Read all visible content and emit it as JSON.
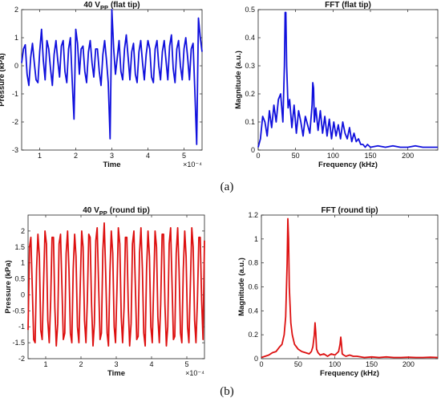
{
  "panel_labels": [
    "(a)",
    "(b)"
  ],
  "chart_data": [
    {
      "type": "line",
      "title": "40 V_PP (flat tip)",
      "title_main": "40 V",
      "title_sub": "PP",
      "title_rest": "(flat tip)",
      "xlabel": "Time",
      "ylabel": "Pressure (kPa)",
      "x_exponent_label": "×10⁻⁴",
      "xlim": [
        0.5,
        5.5
      ],
      "ylim": [
        -3,
        2
      ],
      "xticks": [
        "1",
        "2",
        "3",
        "4",
        "5"
      ],
      "yticks": [
        "-3",
        "-2",
        "-1",
        "0",
        "1",
        "2"
      ],
      "color": "#1010dd",
      "series": [
        {
          "x": [
            0.5,
            0.55,
            0.6,
            0.65,
            0.7,
            0.75,
            0.8,
            0.85,
            0.9,
            0.95,
            1.0,
            1.05,
            1.1,
            1.15,
            1.2,
            1.25,
            1.3,
            1.35,
            1.4,
            1.45,
            1.5,
            1.55,
            1.6,
            1.65,
            1.7,
            1.75,
            1.8,
            1.85,
            1.9,
            1.95,
            2.0,
            2.05,
            2.1,
            2.15,
            2.2,
            2.25,
            2.3,
            2.35,
            2.4,
            2.45,
            2.5,
            2.55,
            2.6,
            2.65,
            2.7,
            2.75,
            2.8,
            2.85,
            2.9,
            2.95,
            3.0,
            3.05,
            3.1,
            3.15,
            3.2,
            3.25,
            3.3,
            3.35,
            3.4,
            3.45,
            3.5,
            3.55,
            3.6,
            3.65,
            3.7,
            3.75,
            3.8,
            3.85,
            3.9,
            3.95,
            4.0,
            4.05,
            4.1,
            4.15,
            4.2,
            4.25,
            4.3,
            4.35,
            4.4,
            4.45,
            4.5,
            4.55,
            4.6,
            4.65,
            4.7,
            4.75,
            4.8,
            4.85,
            4.9,
            4.95,
            5.0,
            5.05,
            5.1,
            5.15,
            5.2,
            5.25,
            5.3,
            5.35,
            5.4,
            5.45,
            5.5
          ],
          "y": [
            0.1,
            0.6,
            0.75,
            -0.3,
            -0.7,
            0.3,
            0.8,
            0.1,
            -0.5,
            -0.6,
            0.5,
            1.3,
            0.2,
            -0.5,
            0.9,
            0.6,
            -0.1,
            -0.7,
            0.4,
            0.9,
            0.2,
            -0.4,
            0.7,
            0.9,
            -0.2,
            -0.6,
            0.6,
            1.0,
            -0.5,
            -1.9,
            1.3,
            0.8,
            -0.3,
            0.6,
            0.7,
            -0.2,
            -0.6,
            0.5,
            0.9,
            0.1,
            -0.4,
            0.6,
            0.6,
            -0.2,
            -0.7,
            0.4,
            0.9,
            0.2,
            -0.6,
            -2.6,
            2.2,
            0.6,
            -0.3,
            0.3,
            0.9,
            -0.2,
            -0.5,
            0.6,
            1.1,
            0.3,
            -0.5,
            0.5,
            0.8,
            -0.3,
            -0.6,
            0.5,
            0.9,
            0.1,
            -0.5,
            0.4,
            0.9,
            0.6,
            -0.4,
            -0.6,
            0.6,
            0.9,
            0.0,
            -0.5,
            0.5,
            0.9,
            0.2,
            -0.5,
            0.7,
            1.1,
            -0.1,
            -0.6,
            0.6,
            0.9,
            0.0,
            -0.5,
            0.6,
            1.0,
            0.3,
            -0.5,
            0.6,
            0.8,
            -0.9,
            -2.8,
            1.7,
            1.0,
            0.5
          ]
        }
      ]
    },
    {
      "type": "line",
      "title": "FFT (flat tip)",
      "xlabel": "Frequency (kHz)",
      "ylabel": "Magnitude (a.u.)",
      "xlim": [
        0,
        240
      ],
      "ylim": [
        0,
        0.5
      ],
      "xticks": [
        "0",
        "50",
        "100",
        "150",
        "200"
      ],
      "yticks": [
        "0",
        "0.1",
        "0.2",
        "0.3",
        "0.4",
        "0.5"
      ],
      "color": "#1010dd",
      "series": [
        {
          "x": [
            0,
            3,
            6,
            9,
            12,
            15,
            18,
            21,
            24,
            27,
            30,
            33,
            35,
            36,
            37,
            38,
            40,
            42,
            45,
            48,
            51,
            54,
            57,
            60,
            63,
            66,
            69,
            72,
            73,
            74,
            75,
            77,
            80,
            83,
            86,
            89,
            92,
            95,
            98,
            101,
            104,
            107,
            110,
            113,
            116,
            119,
            122,
            125,
            128,
            131,
            134,
            137,
            140,
            143,
            146,
            150,
            160,
            170,
            180,
            190,
            200,
            210,
            220,
            230,
            240
          ],
          "y": [
            0.01,
            0.04,
            0.12,
            0.1,
            0.05,
            0.14,
            0.08,
            0.16,
            0.1,
            0.18,
            0.2,
            0.1,
            0.3,
            0.49,
            0.49,
            0.3,
            0.15,
            0.18,
            0.08,
            0.16,
            0.06,
            0.14,
            0.1,
            0.05,
            0.12,
            0.09,
            0.06,
            0.16,
            0.24,
            0.22,
            0.1,
            0.15,
            0.07,
            0.14,
            0.06,
            0.12,
            0.05,
            0.11,
            0.04,
            0.1,
            0.05,
            0.09,
            0.04,
            0.1,
            0.06,
            0.04,
            0.08,
            0.03,
            0.06,
            0.03,
            0.04,
            0.02,
            0.02,
            0.01,
            0.02,
            0.01,
            0.015,
            0.01,
            0.015,
            0.01,
            0.01,
            0.015,
            0.01,
            0.01,
            0.01
          ]
        }
      ]
    },
    {
      "type": "line",
      "title": "40 V_PP (round tip)",
      "title_main": "40 V",
      "title_sub": "PP",
      "title_rest": "(round tip)",
      "xlabel": "Time",
      "ylabel": "Pressure (kPa)",
      "x_exponent_label": "×10⁻⁴",
      "xlim": [
        0.5,
        5.5
      ],
      "ylim": [
        -2,
        2.5
      ],
      "xticks": [
        "1",
        "2",
        "3",
        "4",
        "5"
      ],
      "yticks": [
        "-2",
        "-1.5",
        "-1",
        "-0.5",
        "0",
        "0.5",
        "1",
        "1.5",
        "2"
      ],
      "color": "#dd1010",
      "series": [
        {
          "x": [
            0.5,
            0.54,
            0.58,
            0.62,
            0.66,
            0.7,
            0.74,
            0.78,
            0.82,
            0.86,
            0.9,
            0.94,
            0.98,
            1.02,
            1.06,
            1.1,
            1.14,
            1.18,
            1.22,
            1.26,
            1.3,
            1.34,
            1.38,
            1.42,
            1.46,
            1.5,
            1.54,
            1.58,
            1.62,
            1.66,
            1.7,
            1.74,
            1.78,
            1.82,
            1.86,
            1.9,
            1.94,
            1.98,
            2.02,
            2.06,
            2.1,
            2.14,
            2.18,
            2.22,
            2.26,
            2.3,
            2.34,
            2.38,
            2.42,
            2.46,
            2.5,
            2.54,
            2.58,
            2.62,
            2.66,
            2.7,
            2.74,
            2.78,
            2.82,
            2.86,
            2.9,
            2.94,
            2.98,
            3.02,
            3.06,
            3.1,
            3.14,
            3.18,
            3.22,
            3.26,
            3.3,
            3.34,
            3.38,
            3.42,
            3.46,
            3.5,
            3.54,
            3.58,
            3.62,
            3.66,
            3.7,
            3.74,
            3.78,
            3.82,
            3.86,
            3.9,
            3.94,
            3.98,
            4.02,
            4.06,
            4.1,
            4.14,
            4.18,
            4.22,
            4.26,
            4.3,
            4.34,
            4.38,
            4.42,
            4.46,
            4.5,
            4.54,
            4.58,
            4.62,
            4.66,
            4.7,
            4.74,
            4.78,
            4.82,
            4.86,
            4.9,
            4.94,
            4.98,
            5.02,
            5.06,
            5.1,
            5.14,
            5.18,
            5.22,
            5.26,
            5.3,
            5.34,
            5.38,
            5.42,
            5.46,
            5.5
          ],
          "y": [
            -1.1,
            1.5,
            1.8,
            0.2,
            -1.4,
            -1.5,
            0.8,
            1.9,
            1.2,
            -1.1,
            -1.4,
            0.4,
            2.0,
            1.6,
            -0.8,
            -1.5,
            -0.2,
            1.8,
            1.8,
            -0.4,
            -1.6,
            -0.9,
            1.6,
            1.9,
            0.3,
            -1.4,
            -1.2,
            1.3,
            2.0,
            0.8,
            -1.2,
            -1.5,
            0.8,
            1.9,
            1.2,
            -1.0,
            -1.5,
            0.3,
            2.0,
            1.5,
            -0.8,
            -1.5,
            -0.2,
            1.9,
            1.8,
            -0.3,
            -1.6,
            -0.9,
            1.7,
            2.1,
            0.3,
            -1.4,
            -1.2,
            1.4,
            2.25,
            0.7,
            -1.2,
            -1.6,
            0.7,
            2.0,
            1.3,
            -1.0,
            -1.5,
            0.2,
            2.1,
            1.6,
            -0.7,
            -1.5,
            -0.4,
            1.8,
            1.8,
            -0.4,
            -1.6,
            -0.9,
            1.6,
            2.0,
            0.3,
            -1.4,
            -1.3,
            1.3,
            2.1,
            0.8,
            -1.2,
            -1.6,
            0.8,
            2.0,
            1.2,
            -1.0,
            -1.5,
            0.2,
            2.0,
            1.5,
            -0.7,
            -1.5,
            -0.3,
            1.9,
            1.9,
            -0.3,
            -1.6,
            -1.0,
            1.6,
            2.1,
            0.4,
            -1.4,
            -1.3,
            1.3,
            2.1,
            0.8,
            -1.2,
            -1.5,
            0.8,
            2.0,
            1.2,
            -1.0,
            -1.5,
            0.3,
            2.1,
            1.5,
            -0.8,
            -1.5,
            -0.2,
            1.8,
            1.8,
            -0.2,
            -1.4,
            1.7
          ]
        }
      ]
    },
    {
      "type": "line",
      "title": "FFT (round tip)",
      "xlabel": "Frequency (kHz)",
      "ylabel": "Magnitude (a.u.)",
      "xlim": [
        0,
        240
      ],
      "ylim": [
        0,
        1.2
      ],
      "xticks": [
        "0",
        "50",
        "100",
        "150",
        "200"
      ],
      "yticks": [
        "0",
        "0.2",
        "0.4",
        "0.6",
        "0.8",
        "1",
        "1.2"
      ],
      "color": "#dd1010",
      "series": [
        {
          "x": [
            0,
            5,
            10,
            15,
            20,
            25,
            28,
            31,
            33,
            35,
            36,
            37,
            38,
            40,
            42,
            45,
            50,
            55,
            60,
            65,
            68,
            70,
            72,
            73,
            74,
            75,
            77,
            80,
            85,
            90,
            95,
            100,
            105,
            107,
            108,
            109,
            110,
            112,
            115,
            120,
            125,
            130,
            135,
            140,
            150,
            160,
            170,
            180,
            190,
            200,
            210,
            220,
            230,
            240
          ],
          "y": [
            0.01,
            0.02,
            0.03,
            0.05,
            0.06,
            0.1,
            0.12,
            0.2,
            0.35,
            0.8,
            1.17,
            1.0,
            0.6,
            0.3,
            0.2,
            0.12,
            0.08,
            0.06,
            0.05,
            0.04,
            0.06,
            0.1,
            0.2,
            0.3,
            0.22,
            0.08,
            0.05,
            0.03,
            0.04,
            0.02,
            0.04,
            0.03,
            0.06,
            0.12,
            0.18,
            0.12,
            0.04,
            0.03,
            0.02,
            0.03,
            0.02,
            0.02,
            0.015,
            0.01,
            0.015,
            0.01,
            0.015,
            0.01,
            0.01,
            0.012,
            0.01,
            0.01,
            0.012,
            0.01
          ]
        }
      ]
    }
  ]
}
